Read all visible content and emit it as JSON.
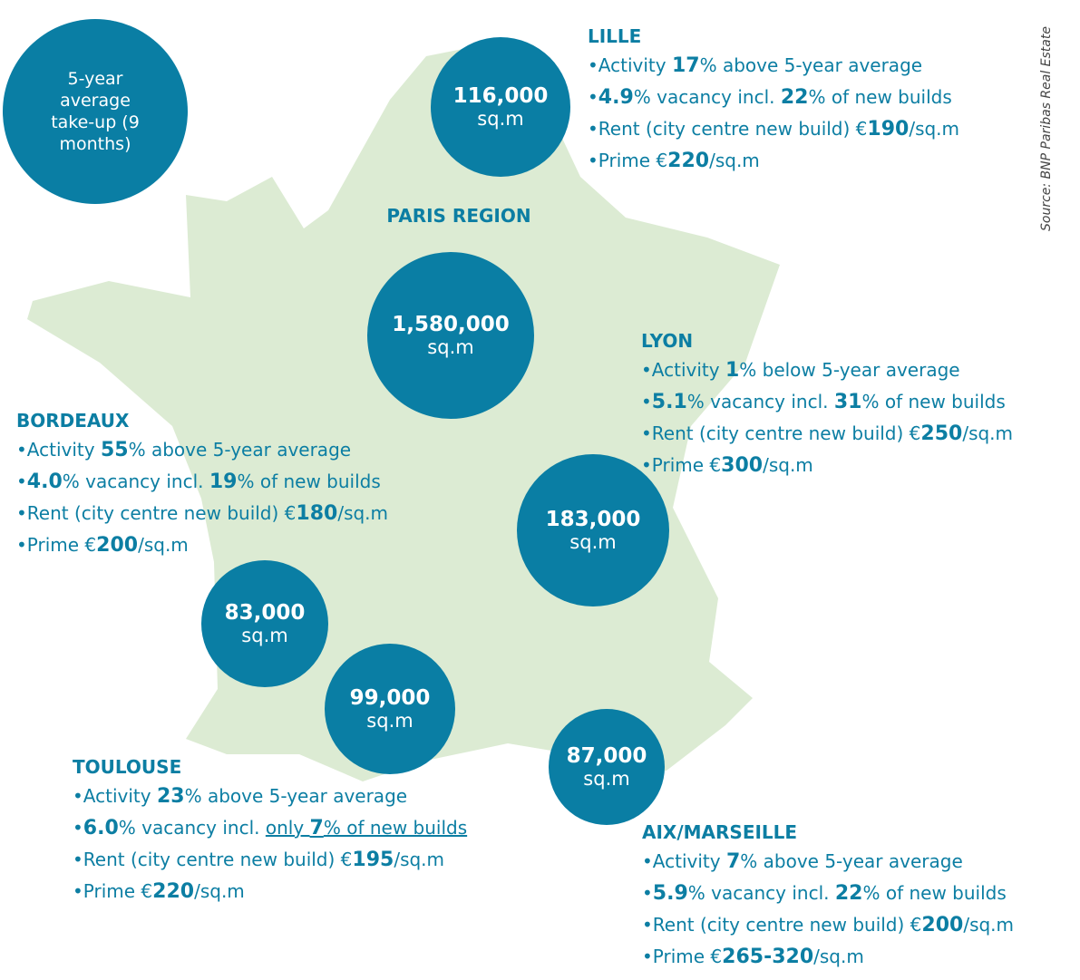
{
  "legend": {
    "text": "5-year average take-up (9 months)"
  },
  "source": "Source: BNP Paribas Real Estate",
  "cities": [
    {
      "name": "LILLE",
      "value": "116,000",
      "unit": "sq.m",
      "bullets": [
        [
          {
            "t": "Activity "
          },
          {
            "t": "17",
            "b": true
          },
          {
            "t": "% above 5-year average"
          }
        ],
        [
          {
            "t": "4.9",
            "b": true
          },
          {
            "t": "% vacancy incl. "
          },
          {
            "t": "22",
            "b": true
          },
          {
            "t": "% of new builds"
          }
        ],
        [
          {
            "t": "Rent (city centre new build) €"
          },
          {
            "t": "190",
            "b": true
          },
          {
            "t": "/sq.m"
          }
        ],
        [
          {
            "t": "Prime €"
          },
          {
            "t": "220",
            "b": true
          },
          {
            "t": "/sq.m"
          }
        ]
      ]
    },
    {
      "name": "PARIS REGION",
      "value": "1,580,000",
      "unit": "sq.m",
      "bullets": []
    },
    {
      "name": "LYON",
      "value": "183,000",
      "unit": "sq.m",
      "bullets": [
        [
          {
            "t": "Activity "
          },
          {
            "t": "1",
            "b": true
          },
          {
            "t": "% below 5-year average"
          }
        ],
        [
          {
            "t": "5.1",
            "b": true
          },
          {
            "t": "% vacancy incl. "
          },
          {
            "t": "31",
            "b": true
          },
          {
            "t": "% of new builds"
          }
        ],
        [
          {
            "t": "Rent (city centre new build) €"
          },
          {
            "t": "250",
            "b": true
          },
          {
            "t": "/sq.m"
          }
        ],
        [
          {
            "t": "Prime €"
          },
          {
            "t": "300",
            "b": true
          },
          {
            "t": "/sq.m"
          }
        ]
      ]
    },
    {
      "name": "BORDEAUX",
      "value": "83,000",
      "unit": "sq.m",
      "bullets": [
        [
          {
            "t": "Activity "
          },
          {
            "t": "55",
            "b": true
          },
          {
            "t": "% above 5-year average"
          }
        ],
        [
          {
            "t": "4.0",
            "b": true
          },
          {
            "t": "% vacancy incl. "
          },
          {
            "t": "19",
            "b": true
          },
          {
            "t": "% of new builds"
          }
        ],
        [
          {
            "t": "Rent (city centre new build) €"
          },
          {
            "t": "180",
            "b": true
          },
          {
            "t": "/sq.m"
          }
        ],
        [
          {
            "t": "Prime €"
          },
          {
            "t": "200",
            "b": true
          },
          {
            "t": "/sq.m"
          }
        ]
      ]
    },
    {
      "name": "TOULOUSE",
      "value": "99,000",
      "unit": "sq.m",
      "bullets": [
        [
          {
            "t": "Activity "
          },
          {
            "t": "23",
            "b": true
          },
          {
            "t": "% above 5-year average"
          }
        ],
        [
          {
            "t": "6.0",
            "b": true
          },
          {
            "t": "% vacancy incl. "
          },
          {
            "t": "only ",
            "u": true
          },
          {
            "t": "7",
            "b": true,
            "u": true
          },
          {
            "t": "% of new builds",
            "u": true
          }
        ],
        [
          {
            "t": "Rent (city centre new build) €"
          },
          {
            "t": "195",
            "b": true
          },
          {
            "t": "/sq.m"
          }
        ],
        [
          {
            "t": "Prime €"
          },
          {
            "t": "220",
            "b": true
          },
          {
            "t": "/sq.m"
          }
        ]
      ]
    },
    {
      "name": "AIX/MARSEILLE",
      "value": "87,000",
      "unit": "sq.m",
      "bullets": [
        [
          {
            "t": "Activity "
          },
          {
            "t": "7",
            "b": true
          },
          {
            "t": "% above 5-year average"
          }
        ],
        [
          {
            "t": "5.9",
            "b": true
          },
          {
            "t": "% vacancy incl. "
          },
          {
            "t": "22",
            "b": true
          },
          {
            "t": "% of new builds"
          }
        ],
        [
          {
            "t": "Rent (city centre new build) €"
          },
          {
            "t": "200",
            "b": true
          },
          {
            "t": "/sq.m"
          }
        ],
        [
          {
            "t": "Prime €"
          },
          {
            "t": "265-320",
            "b": true
          },
          {
            "t": "/sq.m"
          }
        ]
      ]
    }
  ]
}
